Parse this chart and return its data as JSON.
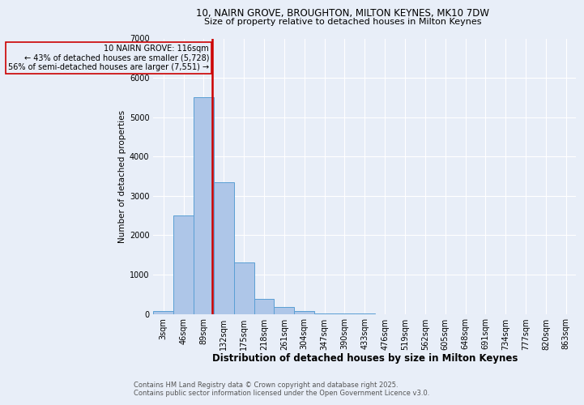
{
  "title1": "10, NAIRN GROVE, BROUGHTON, MILTON KEYNES, MK10 7DW",
  "title2": "Size of property relative to detached houses in Milton Keynes",
  "xlabel": "Distribution of detached houses by size in Milton Keynes",
  "ylabel": "Number of detached properties",
  "footer1": "Contains HM Land Registry data © Crown copyright and database right 2025.",
  "footer2": "Contains public sector information licensed under the Open Government Licence v3.0.",
  "annotation_line1": "10 NAIRN GROVE: 116sqm",
  "annotation_line2": "← 43% of detached houses are smaller (5,728)",
  "annotation_line3": "56% of semi-detached houses are larger (7,551) →",
  "bar_categories": [
    "3sqm",
    "46sqm",
    "89sqm",
    "132sqm",
    "175sqm",
    "218sqm",
    "261sqm",
    "304sqm",
    "347sqm",
    "390sqm",
    "433sqm",
    "476sqm",
    "519sqm",
    "562sqm",
    "605sqm",
    "648sqm",
    "691sqm",
    "734sqm",
    "777sqm",
    "820sqm",
    "863sqm"
  ],
  "bar_values": [
    70,
    2500,
    5500,
    3350,
    1300,
    380,
    175,
    70,
    15,
    5,
    2,
    0,
    0,
    0,
    0,
    0,
    0,
    0,
    0,
    0,
    0
  ],
  "bar_color": "#aec6e8",
  "bar_edge_color": "#5a9fd4",
  "vline_color": "#cc0000",
  "vline_x_index": 2.42,
  "annotation_box_color": "#cc0000",
  "bg_color": "#e8eef8",
  "grid_color": "#ffffff",
  "ylim": [
    0,
    7000
  ],
  "yticks": [
    0,
    1000,
    2000,
    3000,
    4000,
    5000,
    6000,
    7000
  ],
  "title1_fontsize": 8.5,
  "title2_fontsize": 8.0,
  "xlabel_fontsize": 8.5,
  "ylabel_fontsize": 7.5,
  "tick_fontsize": 7.0,
  "footer_fontsize": 6.0,
  "ann_fontsize": 7.0
}
